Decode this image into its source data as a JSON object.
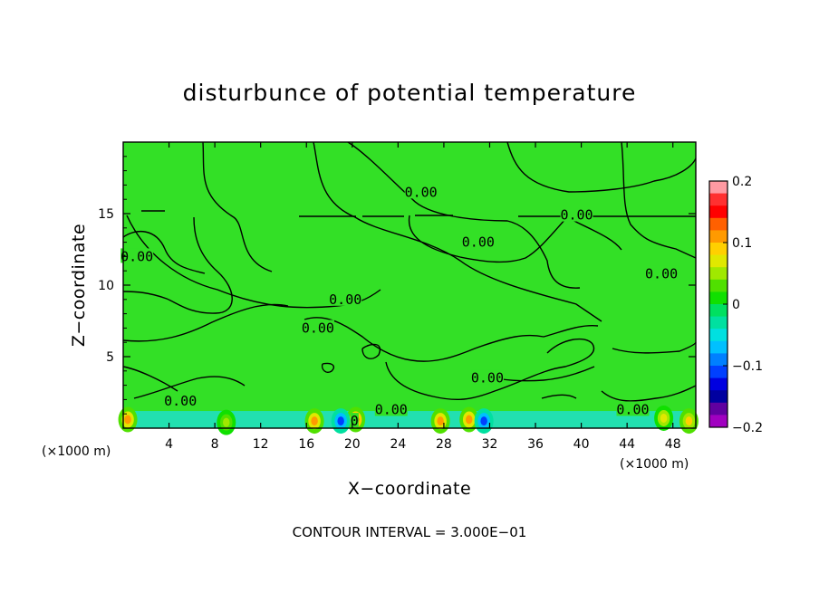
{
  "chart_data": {
    "type": "heatmap",
    "title": "disturbunce of potential temperature",
    "xlabel": "X−coordinate",
    "ylabel": "Z−coordinate",
    "x_unit": "(×1000 m)",
    "x_unit_right": "(×1000 m)",
    "xlim": [
      0,
      50
    ],
    "ylim": [
      0,
      20
    ],
    "x_ticks": [
      4,
      8,
      12,
      16,
      20,
      24,
      28,
      32,
      36,
      40,
      44,
      48
    ],
    "y_ticks": [
      5,
      10,
      15
    ],
    "footer": "CONTOUR INTERVAL = 3.000E−01",
    "colorbar": {
      "ticks": [
        {
          "value": 0.2,
          "label": "0.2"
        },
        {
          "value": 0.1,
          "label": "0.1"
        },
        {
          "value": 0.0,
          "label": "0"
        },
        {
          "value": -0.1,
          "label": "−0.1"
        },
        {
          "value": -0.2,
          "label": "−0.2"
        }
      ],
      "colors": [
        "#ff9aa2",
        "#ff3030",
        "#ff0000",
        "#ff6000",
        "#ff9a00",
        "#ffd000",
        "#e0e800",
        "#a0e800",
        "#50e000",
        "#10e000",
        "#00e060",
        "#00e0a0",
        "#00e0e0",
        "#00c0ff",
        "#0080ff",
        "#0040ff",
        "#0000e0",
        "#0000a0",
        "#6000a0",
        "#a000c0"
      ]
    },
    "contour_labels": [
      {
        "text": "0.00",
        "x": 26.0,
        "y": 16.5
      },
      {
        "text": "0.00",
        "x": 31.0,
        "y": 13.0
      },
      {
        "text": "0.00",
        "x": 39.6,
        "y": 14.9
      },
      {
        "text": "0.00",
        "x": 47.0,
        "y": 10.8
      },
      {
        "text": "0.00",
        "x": 1.2,
        "y": 12.0
      },
      {
        "text": "0.00",
        "x": 19.4,
        "y": 9.0
      },
      {
        "text": "0.00",
        "x": 17.0,
        "y": 7.0
      },
      {
        "text": "0.00",
        "x": 31.8,
        "y": 3.5
      },
      {
        "text": "0.00",
        "x": 5.0,
        "y": 1.9
      },
      {
        "text": "0.00",
        "x": 23.4,
        "y": 1.3
      },
      {
        "text": "0.00",
        "x": 44.5,
        "y": 1.3
      },
      {
        "text": "0",
        "x": 20.2,
        "y": 0.5
      }
    ],
    "extrema": [
      {
        "x": 0.4,
        "y": 0.6,
        "value": 0.12
      },
      {
        "x": 16.7,
        "y": 0.5,
        "value": 0.12
      },
      {
        "x": 20.3,
        "y": 0.6,
        "value": 0.15
      },
      {
        "x": 27.7,
        "y": 0.5,
        "value": 0.12
      },
      {
        "x": 30.2,
        "y": 0.6,
        "value": 0.12
      },
      {
        "x": 19.0,
        "y": 0.5,
        "value": -0.12
      },
      {
        "x": 31.5,
        "y": 0.5,
        "value": -0.12
      },
      {
        "x": 49.4,
        "y": 0.5,
        "value": 0.1
      },
      {
        "x": 47.2,
        "y": 0.7,
        "value": 0.08
      },
      {
        "x": 9.0,
        "y": 0.4,
        "value": 0.05
      }
    ],
    "background_value": 0.03
  }
}
